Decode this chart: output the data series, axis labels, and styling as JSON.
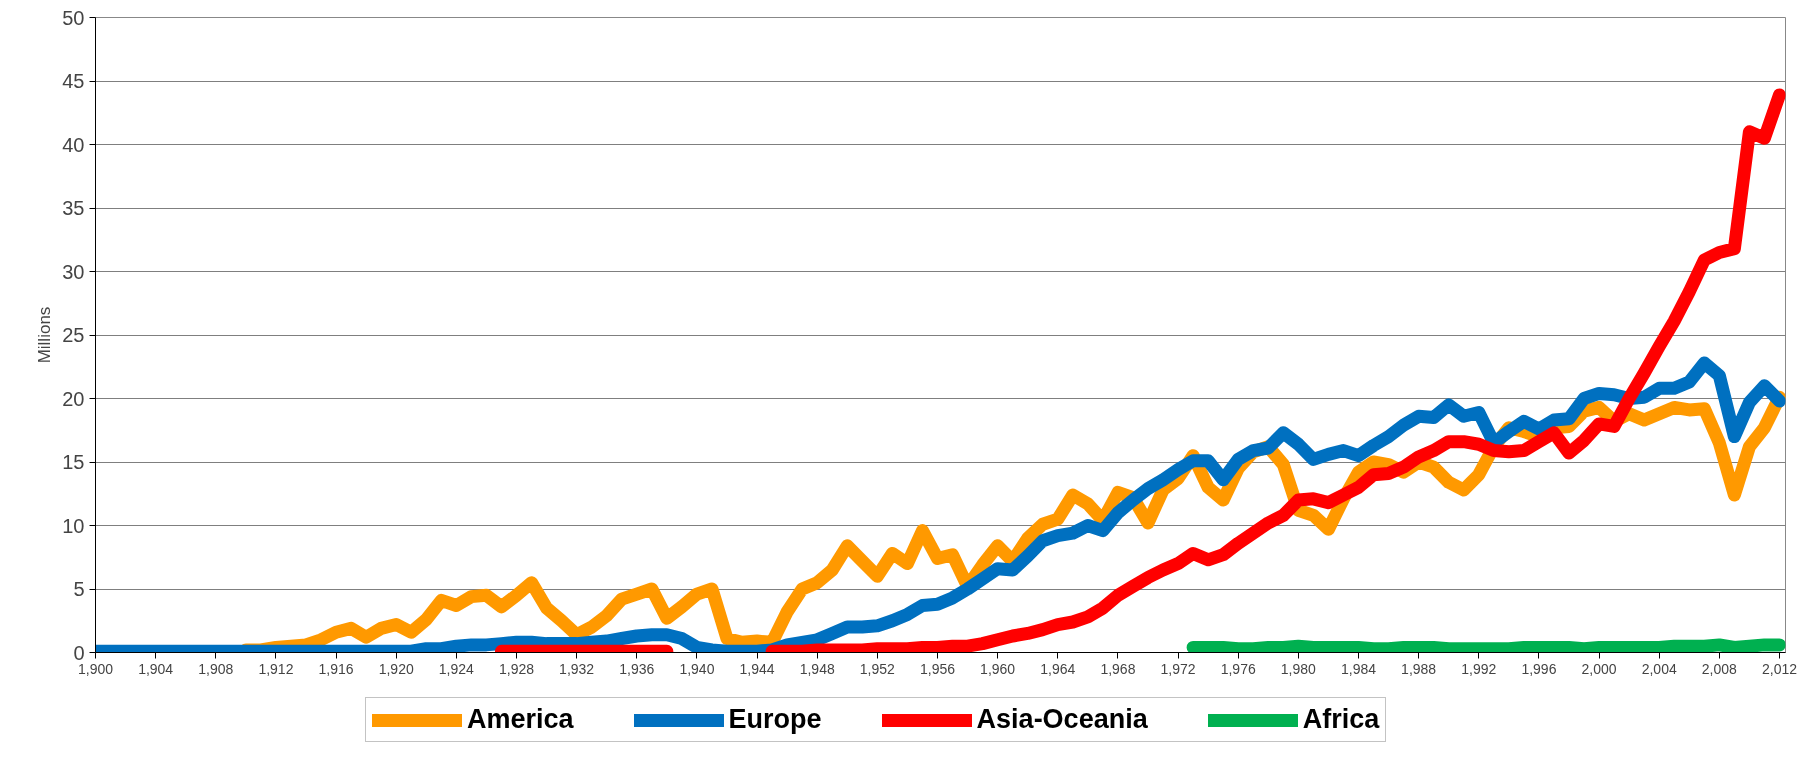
{
  "chart_data": {
    "type": "line",
    "ylabel": "Millions",
    "x": [
      1900,
      1901,
      1902,
      1903,
      1904,
      1905,
      1906,
      1907,
      1908,
      1909,
      1910,
      1911,
      1912,
      1913,
      1914,
      1915,
      1916,
      1917,
      1918,
      1919,
      1920,
      1921,
      1922,
      1923,
      1924,
      1925,
      1926,
      1927,
      1928,
      1929,
      1930,
      1931,
      1932,
      1933,
      1934,
      1935,
      1936,
      1937,
      1938,
      1939,
      1940,
      1941,
      1942,
      1943,
      1944,
      1945,
      1946,
      1947,
      1948,
      1949,
      1950,
      1951,
      1952,
      1953,
      1954,
      1955,
      1956,
      1957,
      1958,
      1959,
      1960,
      1961,
      1962,
      1963,
      1964,
      1965,
      1966,
      1967,
      1968,
      1969,
      1970,
      1971,
      1972,
      1973,
      1974,
      1975,
      1976,
      1977,
      1978,
      1979,
      1980,
      1981,
      1982,
      1983,
      1984,
      1985,
      1986,
      1987,
      1988,
      1989,
      1990,
      1991,
      1992,
      1993,
      1994,
      1995,
      1996,
      1997,
      1998,
      1999,
      2000,
      2001,
      2002,
      2003,
      2004,
      2005,
      2006,
      2007,
      2008,
      2009,
      2010,
      2011,
      2012
    ],
    "series": [
      {
        "name": "America",
        "color": "#ff9900",
        "values": [
          null,
          null,
          null,
          null,
          null,
          null,
          null,
          null,
          null,
          null,
          0.2,
          0.2,
          0.4,
          0.5,
          0.6,
          1.0,
          1.6,
          1.9,
          1.2,
          1.9,
          2.2,
          1.6,
          2.6,
          4.1,
          3.7,
          4.4,
          4.5,
          3.6,
          4.5,
          5.5,
          3.5,
          2.5,
          1.4,
          2.0,
          2.9,
          4.2,
          4.6,
          5.0,
          2.7,
          3.6,
          4.6,
          5.0,
          1.1,
          0.8,
          0.9,
          0.8,
          3.2,
          5.0,
          5.5,
          6.5,
          8.4,
          7.2,
          6.0,
          7.8,
          7.0,
          9.6,
          7.4,
          7.7,
          5.2,
          6.9,
          8.4,
          7.2,
          9.0,
          10.1,
          10.5,
          12.4,
          11.7,
          10.4,
          12.6,
          12.2,
          10.2,
          12.8,
          13.7,
          15.5,
          13.0,
          12.0,
          14.5,
          15.8,
          16.2,
          14.8,
          11.2,
          10.8,
          9.7,
          12.1,
          14.2,
          15.0,
          14.8,
          14.2,
          15.0,
          14.6,
          13.4,
          12.8,
          14.0,
          16.2,
          17.7,
          17.4,
          17.0,
          17.7,
          17.8,
          19.0,
          19.3,
          18.2,
          18.8,
          18.3,
          18.8,
          19.3,
          19.1,
          19.2,
          16.5,
          12.4,
          16.2,
          17.7,
          20.1
        ]
      },
      {
        "name": "Europe",
        "color": "#0070c0",
        "values": [
          0.1,
          0.1,
          0.1,
          0.1,
          0.1,
          0.1,
          0.1,
          0.1,
          0.1,
          0.1,
          0.1,
          0.1,
          0.1,
          0.1,
          0.1,
          0.1,
          0.1,
          0.1,
          0.1,
          0.1,
          0.1,
          0.1,
          0.3,
          0.3,
          0.5,
          0.6,
          0.6,
          0.7,
          0.8,
          0.8,
          0.7,
          0.7,
          0.7,
          0.8,
          0.9,
          1.1,
          1.3,
          1.4,
          1.4,
          1.1,
          0.4,
          0.2,
          0.1,
          0.1,
          0.1,
          0.2,
          0.6,
          0.8,
          1.0,
          1.5,
          2.0,
          2.0,
          2.1,
          2.5,
          3.0,
          3.7,
          3.8,
          4.3,
          5.0,
          5.8,
          6.6,
          6.5,
          7.6,
          8.8,
          9.2,
          9.4,
          10.0,
          9.6,
          11.0,
          12.0,
          12.9,
          13.6,
          14.4,
          15.1,
          15.1,
          13.6,
          15.2,
          15.9,
          16.1,
          17.3,
          16.4,
          15.2,
          15.6,
          15.9,
          15.5,
          16.3,
          17.0,
          17.9,
          18.6,
          18.5,
          19.5,
          18.6,
          18.9,
          16.5,
          17.4,
          18.2,
          17.6,
          18.3,
          18.4,
          20.0,
          20.4,
          20.3,
          20.0,
          20.1,
          20.8,
          20.8,
          21.3,
          22.8,
          21.8,
          17.0,
          19.7,
          21.0,
          19.8
        ]
      },
      {
        "name": "Asia-Oceania",
        "color": "#ff0000",
        "values": [
          null,
          null,
          null,
          null,
          null,
          null,
          null,
          null,
          null,
          null,
          null,
          null,
          null,
          null,
          null,
          null,
          null,
          null,
          null,
          null,
          null,
          null,
          null,
          null,
          null,
          null,
          null,
          0.1,
          0.1,
          0.1,
          0.1,
          0.1,
          0.1,
          0.1,
          0.1,
          0.1,
          0.1,
          0.1,
          0.1,
          null,
          null,
          null,
          null,
          null,
          null,
          0.1,
          0.1,
          0.1,
          0.2,
          0.2,
          0.2,
          0.2,
          0.3,
          0.3,
          0.3,
          0.4,
          0.4,
          0.5,
          0.5,
          0.7,
          1.0,
          1.3,
          1.5,
          1.8,
          2.2,
          2.4,
          2.8,
          3.5,
          4.5,
          5.2,
          5.9,
          6.5,
          7.0,
          7.8,
          7.3,
          7.7,
          8.6,
          9.4,
          10.2,
          10.8,
          12.0,
          12.1,
          11.8,
          12.4,
          13.0,
          14.0,
          14.1,
          14.6,
          15.4,
          15.9,
          16.6,
          16.6,
          16.4,
          15.9,
          15.8,
          15.9,
          16.6,
          17.3,
          15.7,
          16.7,
          18.0,
          17.8,
          20.0,
          22.0,
          24.1,
          26.1,
          28.4,
          30.9,
          31.5,
          31.8,
          41.0,
          40.5,
          43.9
        ]
      },
      {
        "name": "Africa",
        "color": "#00b050",
        "values": [
          null,
          null,
          null,
          null,
          null,
          null,
          null,
          null,
          null,
          null,
          null,
          null,
          null,
          null,
          null,
          null,
          null,
          null,
          null,
          null,
          null,
          null,
          null,
          null,
          null,
          null,
          null,
          null,
          null,
          null,
          null,
          null,
          null,
          null,
          null,
          null,
          null,
          null,
          null,
          null,
          null,
          null,
          null,
          null,
          null,
          null,
          null,
          null,
          null,
          null,
          null,
          null,
          null,
          null,
          null,
          null,
          null,
          null,
          null,
          null,
          null,
          null,
          null,
          null,
          null,
          null,
          null,
          null,
          null,
          null,
          null,
          null,
          null,
          0.4,
          0.4,
          0.4,
          0.3,
          0.3,
          0.4,
          0.4,
          0.5,
          0.4,
          0.4,
          0.4,
          0.4,
          0.3,
          0.3,
          0.4,
          0.4,
          0.4,
          0.3,
          0.3,
          0.3,
          0.3,
          0.3,
          0.4,
          0.4,
          0.4,
          0.4,
          0.3,
          0.4,
          0.4,
          0.4,
          0.4,
          0.4,
          0.5,
          0.5,
          0.5,
          0.6,
          0.4,
          0.5,
          0.6,
          0.6
        ]
      }
    ],
    "xlim": [
      1900,
      2012.4
    ],
    "xticks": [
      {
        "value": 1900,
        "label": "1,900"
      },
      {
        "value": 1904,
        "label": "1,904"
      },
      {
        "value": 1908,
        "label": "1,908"
      },
      {
        "value": 1912,
        "label": "1,912"
      },
      {
        "value": 1916,
        "label": "1,916"
      },
      {
        "value": 1920,
        "label": "1,920"
      },
      {
        "value": 1924,
        "label": "1,924"
      },
      {
        "value": 1928,
        "label": "1,928"
      },
      {
        "value": 1932,
        "label": "1,932"
      },
      {
        "value": 1936,
        "label": "1,936"
      },
      {
        "value": 1940,
        "label": "1,940"
      },
      {
        "value": 1944,
        "label": "1,944"
      },
      {
        "value": 1948,
        "label": "1,948"
      },
      {
        "value": 1952,
        "label": "1,952"
      },
      {
        "value": 1956,
        "label": "1,956"
      },
      {
        "value": 1960,
        "label": "1,960"
      },
      {
        "value": 1964,
        "label": "1,964"
      },
      {
        "value": 1968,
        "label": "1,968"
      },
      {
        "value": 1972,
        "label": "1,972"
      },
      {
        "value": 1976,
        "label": "1,976"
      },
      {
        "value": 1980,
        "label": "1,980"
      },
      {
        "value": 1984,
        "label": "1,984"
      },
      {
        "value": 1988,
        "label": "1,988"
      },
      {
        "value": 1992,
        "label": "1,992"
      },
      {
        "value": 1996,
        "label": "1,996"
      },
      {
        "value": 2000,
        "label": "2,000"
      },
      {
        "value": 2004,
        "label": "2,004"
      },
      {
        "value": 2008,
        "label": "2,008"
      },
      {
        "value": 2012,
        "label": "2,012"
      }
    ],
    "ylim": [
      0,
      50
    ],
    "yticks": [
      0,
      5,
      10,
      15,
      20,
      25,
      30,
      35,
      40,
      45,
      50
    ],
    "grid": "y",
    "legend": "bottom",
    "line_style": "solid"
  }
}
